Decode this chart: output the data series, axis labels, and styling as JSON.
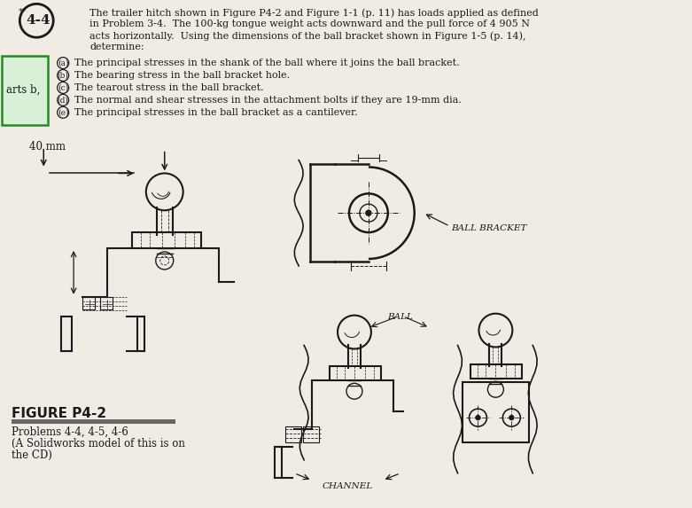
{
  "bg_color": "#f0ece4",
  "text_color": "#1a1a1a",
  "problem_number": "4-4",
  "problem_text_lines": [
    "The trailer hitch shown in Figure P4-2 and Figure 1-1 (p. 11) has loads applied as defined",
    "in Problem 3-4.  The 100-kg tongue weight acts downward and the pull force of 4 905 N",
    "acts horizontally.  Using the dimensions of the ball bracket shown in Figure 1-5 (p. 14),",
    "determine:"
  ],
  "parts": [
    [
      "a",
      "The principal stresses in the shank of the ball where it joins the ball bracket."
    ],
    [
      "b",
      "The bearing stress in the ball bracket hole."
    ],
    [
      "c",
      "The tearout stress in the ball bracket."
    ],
    [
      "d",
      "The normal and shear stresses in the attachment bolts if they are 19-mm dia."
    ],
    [
      "e",
      "The principal stresses in the ball bracket as a cantilever."
    ]
  ],
  "side_label": "arts b,",
  "dim_label": "40 mm",
  "figure_label": "FIGURE P4-2",
  "caption_lines": [
    "Problems 4-4, 4-5, 4-6",
    "(A Solidworks model of this is on",
    "the CD)"
  ],
  "ball_bracket_label": "BALL BRACKET",
  "ball_label": "BALL",
  "channel_label": "CHANNEL"
}
